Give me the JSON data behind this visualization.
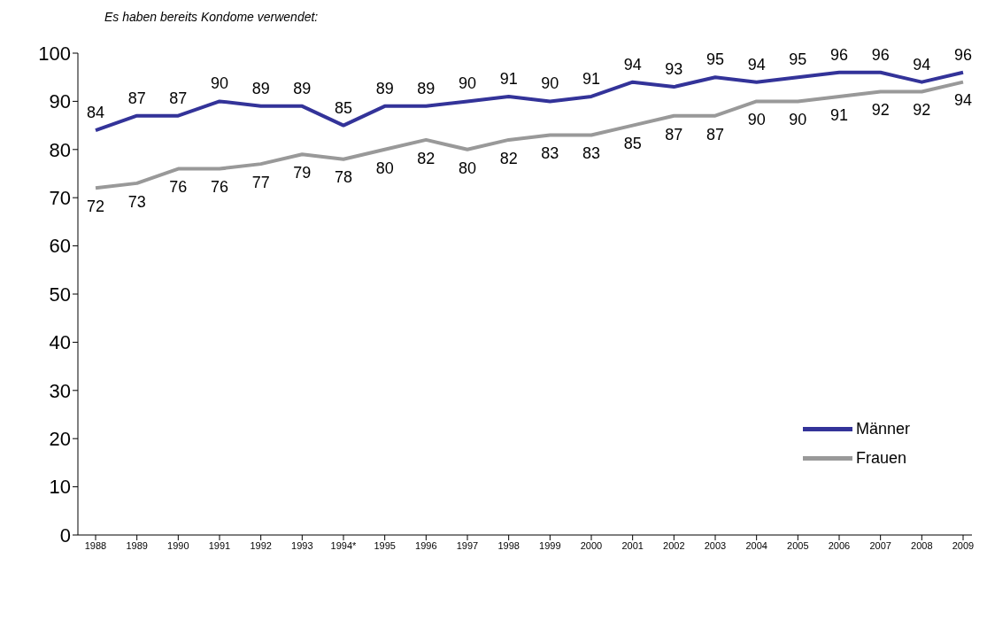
{
  "chart_data": {
    "type": "line",
    "title": "Es haben bereits Kondome verwendet:",
    "categories": [
      "1988",
      "1989",
      "1990",
      "1991",
      "1992",
      "1993",
      "1994*",
      "1995",
      "1996",
      "1997",
      "1998",
      "1999",
      "2000",
      "2001",
      "2002",
      "2003",
      "2004",
      "2005",
      "2006",
      "2007",
      "2008",
      "2009"
    ],
    "series": [
      {
        "name": "Männer",
        "color": "#333399",
        "values": [
          84,
          87,
          87,
          90,
          89,
          89,
          85,
          89,
          89,
          90,
          91,
          90,
          91,
          94,
          93,
          95,
          94,
          95,
          96,
          96,
          94,
          96
        ]
      },
      {
        "name": "Frauen",
        "color": "#999999",
        "values": [
          72,
          73,
          76,
          76,
          77,
          79,
          78,
          80,
          82,
          80,
          82,
          83,
          83,
          85,
          87,
          87,
          90,
          90,
          91,
          92,
          92,
          94
        ]
      }
    ],
    "ylim": [
      0,
      100
    ],
    "yticks": [
      0,
      10,
      20,
      30,
      40,
      50,
      60,
      70,
      80,
      90,
      100
    ],
    "grid": false,
    "legend": "bottom right",
    "marker": "none",
    "line_style": "solid",
    "data_labels": true
  }
}
